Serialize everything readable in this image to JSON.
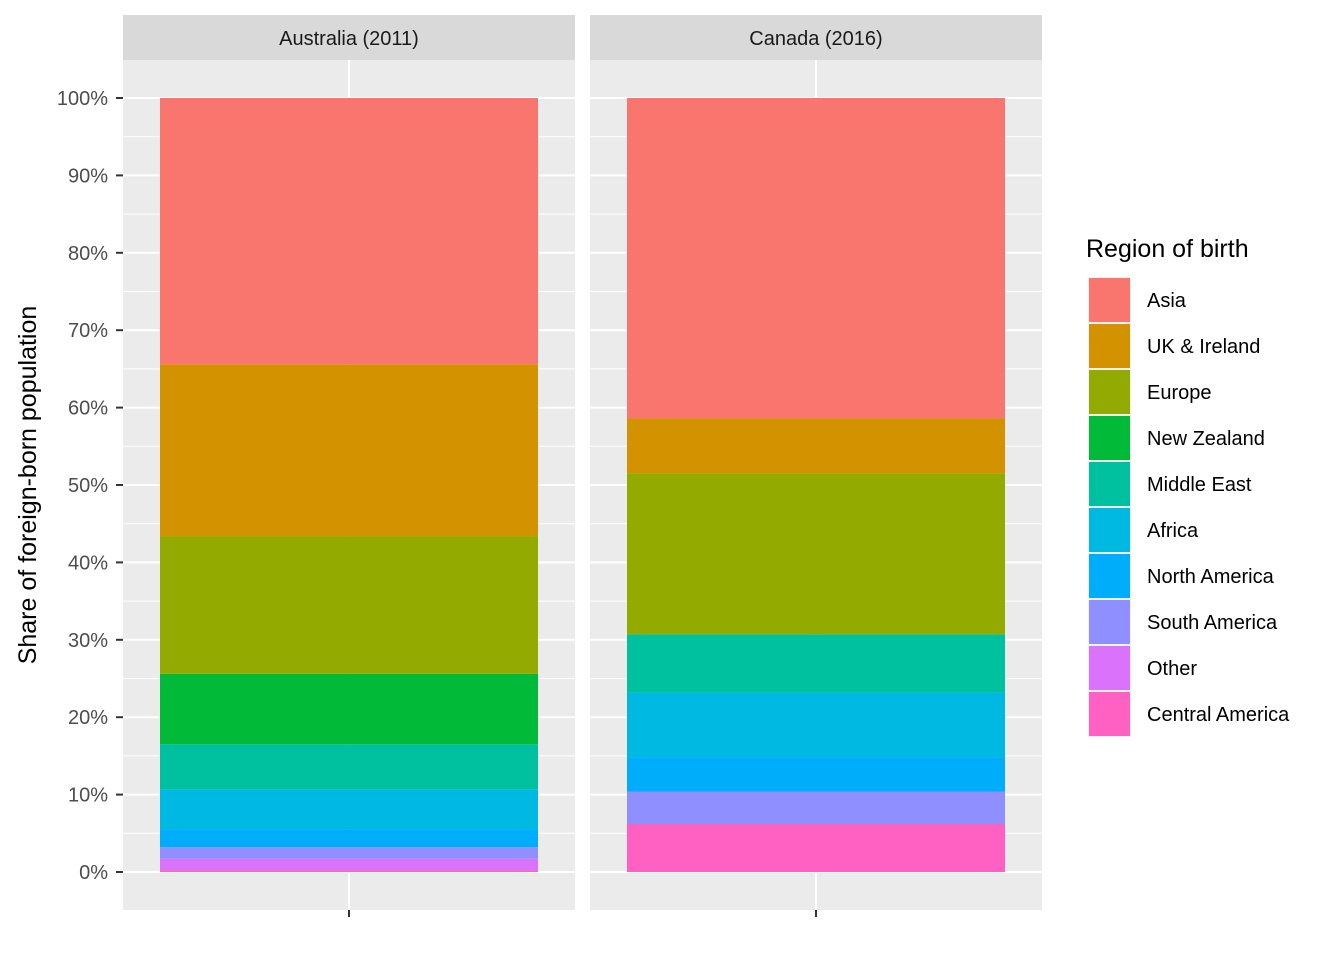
{
  "chart_data": {
    "type": "bar",
    "stacked": true,
    "facets": [
      "Australia (2011)",
      "Canada (2016)"
    ],
    "ylabel": "Share of foreign-born population",
    "xlabel": "",
    "ylim": [
      0,
      100
    ],
    "y_ticks": [
      "0%",
      "10%",
      "20%",
      "30%",
      "40%",
      "50%",
      "60%",
      "70%",
      "80%",
      "90%",
      "100%"
    ],
    "y_tick_values": [
      0,
      10,
      20,
      30,
      40,
      50,
      60,
      70,
      80,
      90,
      100
    ],
    "legend": {
      "title": "Region of birth",
      "position": "right"
    },
    "series": [
      {
        "name": "Asia",
        "color": "#F8766D",
        "values": [
          34.4,
          41.4
        ]
      },
      {
        "name": "UK & Ireland",
        "color": "#D39200",
        "values": [
          22.2,
          7.1
        ]
      },
      {
        "name": "Europe",
        "color": "#93AA00",
        "values": [
          17.8,
          20.8
        ]
      },
      {
        "name": "New Zealand",
        "color": "#00BA38",
        "values": [
          9.1,
          0
        ]
      },
      {
        "name": "Middle East",
        "color": "#00C19F",
        "values": [
          5.8,
          7.5
        ]
      },
      {
        "name": "Africa",
        "color": "#00B9E3",
        "values": [
          5.2,
          8.4
        ]
      },
      {
        "name": "North America",
        "color": "#00ADFA",
        "values": [
          2.3,
          4.4
        ]
      },
      {
        "name": "South America",
        "color": "#8F8FFF",
        "values": [
          1.5,
          4.2
        ]
      },
      {
        "name": "Other",
        "color": "#DB72FB",
        "values": [
          1.5,
          0
        ]
      },
      {
        "name": "Central America",
        "color": "#FF61C3",
        "values": [
          0.2,
          6.2
        ]
      }
    ]
  }
}
